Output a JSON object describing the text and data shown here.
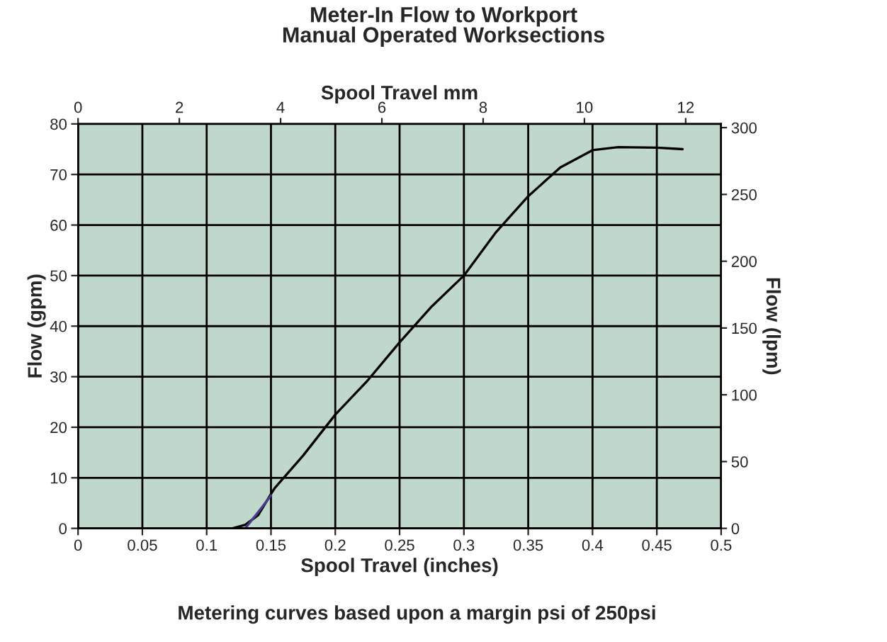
{
  "chart_data": {
    "type": "line",
    "title": "Meter-In Flow to Workport\nManual Operated Worksections",
    "xlabel": "Spool Travel (inches)",
    "ylabel": "Flow (gpm)",
    "y2label": "Flow (lpm)",
    "x2label": "Spool Travel mm",
    "annotations": [
      "Metering curves based upon a margin psi of 250psi"
    ],
    "xlim": [
      0,
      0.5
    ],
    "xticks": [
      0,
      0.05,
      0.1,
      0.15,
      0.2,
      0.25,
      0.3,
      0.35,
      0.4,
      0.45,
      0.5
    ],
    "ylim": [
      0,
      80
    ],
    "yticks": [
      0,
      10,
      20,
      30,
      40,
      50,
      60,
      70,
      80
    ],
    "y2lim": [
      0,
      302.8
    ],
    "y2ticks": [
      0,
      50,
      100,
      150,
      200,
      250,
      300
    ],
    "x2lim": [
      0,
      12.7
    ],
    "x2ticks": [
      0,
      2,
      4,
      6,
      8,
      10,
      12
    ],
    "grid": true,
    "marker": "none",
    "line_style": "solid",
    "series": [
      {
        "color": "#000000",
        "x": [
          0.12,
          0.13,
          0.14,
          0.15,
          0.153,
          0.175,
          0.2,
          0.225,
          0.25,
          0.275,
          0.3,
          0.325,
          0.35,
          0.375,
          0.4,
          0.42,
          0.45,
          0.47
        ],
        "values": [
          0,
          0.7,
          2.6,
          6.8,
          8,
          14.4,
          22.5,
          29.2,
          36.8,
          43.9,
          50,
          58.6,
          65.7,
          71.4,
          74.8,
          75.4,
          75.3,
          75.0
        ]
      },
      {
        "color": "#4b3c8c",
        "x": [
          0.13,
          0.14,
          0.15
        ],
        "values": [
          0,
          3.2,
          6.5
        ]
      }
    ]
  }
}
